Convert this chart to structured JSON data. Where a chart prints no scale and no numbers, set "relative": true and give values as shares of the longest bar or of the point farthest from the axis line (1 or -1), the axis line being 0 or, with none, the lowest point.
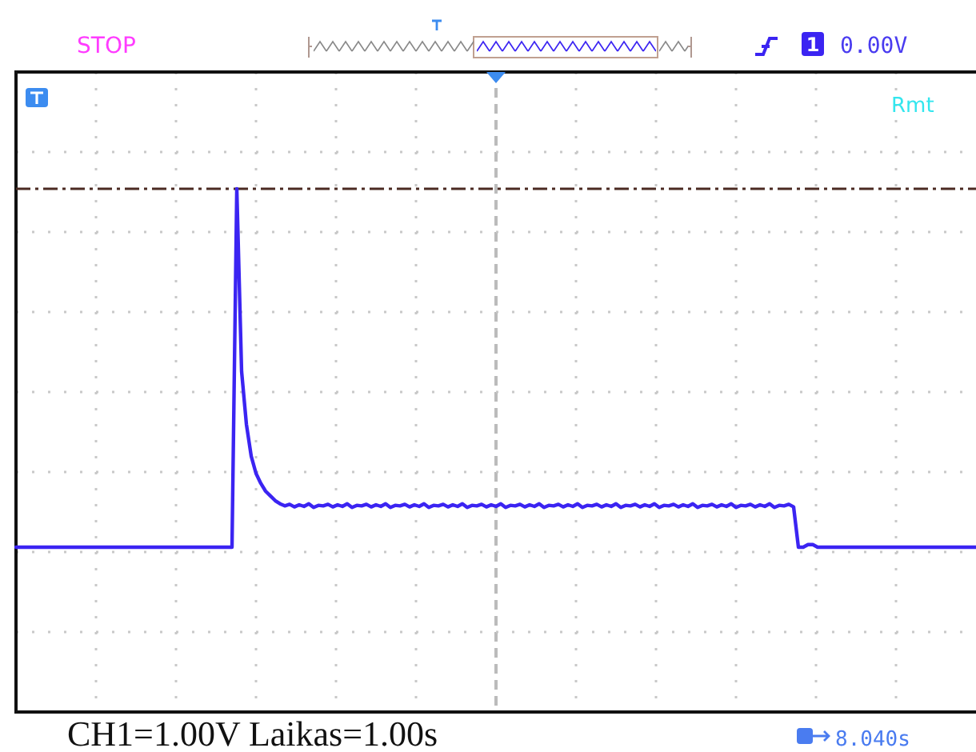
{
  "chart_data": {
    "type": "line",
    "relative": true,
    "tick_labels": false,
    "grid": true,
    "color": "#3b24f2",
    "categories": [
      null,
      null,
      null,
      null,
      null,
      null,
      null,
      null,
      null,
      null,
      null,
      null,
      null,
      null,
      null,
      null,
      null,
      null,
      null,
      null,
      null,
      null,
      null,
      null,
      null,
      null,
      null,
      null,
      null,
      null,
      null,
      null,
      null,
      null,
      null,
      null,
      null,
      null,
      null,
      null,
      null,
      null,
      null,
      null,
      null,
      null,
      null,
      null,
      null,
      null,
      null,
      null,
      null,
      null,
      null,
      null,
      null,
      null,
      null,
      null,
      null,
      null,
      null,
      null,
      null,
      null,
      null,
      null,
      null,
      null,
      null,
      null,
      null,
      null,
      null,
      null,
      null,
      null,
      null,
      null,
      null,
      null,
      null,
      null,
      null,
      null,
      null,
      null,
      null,
      null,
      null,
      null,
      null,
      null,
      null,
      null,
      null,
      null,
      null,
      null,
      null,
      null,
      null,
      null,
      null,
      null,
      null,
      null,
      null,
      null,
      null,
      null,
      null,
      null,
      null,
      null,
      null,
      null,
      null,
      null,
      null,
      null,
      null,
      null,
      null,
      null,
      null,
      null,
      null,
      null,
      null,
      null,
      null,
      null,
      null,
      null,
      null,
      null,
      null,
      null,
      null,
      null,
      null,
      null,
      null,
      null,
      null,
      null,
      null,
      null,
      null,
      null,
      null,
      null,
      null,
      null,
      null,
      null,
      null,
      null,
      null,
      null,
      null,
      null,
      null,
      null,
      null,
      null,
      null,
      null,
      null,
      null,
      null,
      null,
      null,
      null,
      null,
      null,
      null,
      null,
      null,
      null,
      null,
      null,
      null,
      null,
      null,
      null,
      null,
      null,
      null,
      null,
      null,
      null,
      null,
      null,
      null,
      null,
      null,
      null,
      null
    ],
    "values": [
      0.315,
      0.315,
      0.315,
      0.315,
      0.315,
      0.315,
      0.315,
      0.315,
      0.315,
      0.315,
      0.315,
      0.315,
      0.315,
      0.315,
      0.315,
      0.315,
      0.315,
      0.315,
      0.315,
      0.315,
      0.315,
      0.315,
      0.315,
      0.315,
      0.315,
      0.315,
      0.315,
      0.315,
      0.315,
      0.315,
      0.315,
      0.315,
      0.315,
      0.315,
      0.315,
      0.315,
      0.315,
      0.315,
      0.315,
      0.315,
      0.315,
      0.315,
      0.315,
      0.315,
      0.315,
      0.315,
      1.0,
      0.651,
      0.55,
      0.489,
      0.456,
      0.437,
      0.422,
      0.413,
      0.404,
      0.398,
      0.394,
      0.397,
      0.392,
      0.396,
      0.393,
      0.398,
      0.391,
      0.395,
      0.394,
      0.397,
      0.392,
      0.396,
      0.393,
      0.398,
      0.391,
      0.395,
      0.394,
      0.397,
      0.392,
      0.396,
      0.393,
      0.398,
      0.391,
      0.395,
      0.394,
      0.397,
      0.392,
      0.396,
      0.393,
      0.398,
      0.391,
      0.395,
      0.394,
      0.397,
      0.392,
      0.396,
      0.393,
      0.398,
      0.391,
      0.395,
      0.394,
      0.397,
      0.392,
      0.396,
      0.393,
      0.398,
      0.391,
      0.395,
      0.394,
      0.397,
      0.392,
      0.396,
      0.393,
      0.398,
      0.391,
      0.395,
      0.394,
      0.397,
      0.392,
      0.396,
      0.393,
      0.398,
      0.391,
      0.395,
      0.394,
      0.397,
      0.392,
      0.396,
      0.393,
      0.398,
      0.391,
      0.395,
      0.394,
      0.397,
      0.392,
      0.396,
      0.393,
      0.398,
      0.391,
      0.395,
      0.394,
      0.397,
      0.392,
      0.396,
      0.393,
      0.398,
      0.391,
      0.395,
      0.394,
      0.397,
      0.392,
      0.396,
      0.393,
      0.398,
      0.391,
      0.395,
      0.394,
      0.397,
      0.392,
      0.396,
      0.393,
      0.398,
      0.391,
      0.395,
      0.394,
      0.397,
      0.392,
      0.315,
      0.315,
      0.32,
      0.32,
      0.315,
      0.315,
      0.315,
      0.315,
      0.315,
      0.315,
      0.315,
      0.315,
      0.315,
      0.315,
      0.315,
      0.315,
      0.315,
      0.315,
      0.315,
      0.315,
      0.315,
      0.315,
      0.315,
      0.315,
      0.315,
      0.315,
      0.315,
      0.315,
      0.315,
      0.315,
      0.315,
      0.315,
      0.315,
      0.315,
      0.315,
      0.315,
      0.315,
      0.315
    ],
    "ref_lines": [
      {
        "axis": "y",
        "value": 1,
        "color": "#4b2a22",
        "line_style": "dashed"
      }
    ],
    "annotations": [
      "STOP",
      "1",
      "0.00V",
      "Rmt",
      "CH1=1.00V Laikas=1.00s",
      "8.040s"
    ]
  }
}
